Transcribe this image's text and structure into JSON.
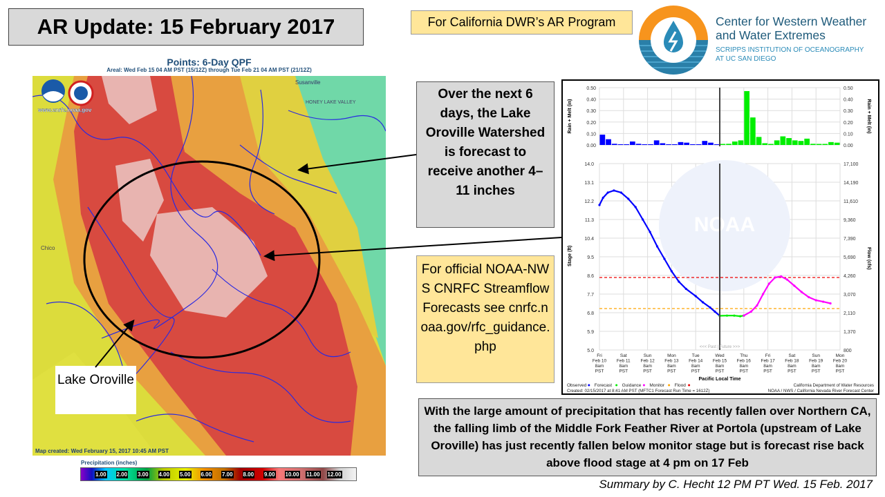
{
  "slide": {
    "title": "AR Update: 15 February 2017",
    "program_label": "For California DWR’s AR Program",
    "summary": "Summary by C. Hecht 12 PM PT Wed. 15 Feb. 2017"
  },
  "logo": {
    "line1": "Center for Western Weather",
    "line2": "and Water Extremes",
    "line3": "SCRIPPS INSTITUTION OF OCEANOGRAPHY",
    "line4": "AT UC SAN DIEGO",
    "colors": {
      "orange": "#f7941d",
      "blue": "#2a8bb8"
    }
  },
  "map": {
    "title": "Points: 6-Day QPF",
    "subtitle": "Areal: Wed Feb 15 04 AM PST (15/12Z) through Tue Feb 21 04 AM PST (21/12Z)",
    "website": "www.cnrfc.noaa.gov",
    "created": "Map created: Wed February 15, 2017 10:45 AM PST",
    "place_labels": [
      "Susanville",
      "HONEY LAKE VALLEY",
      "Chico"
    ],
    "lake_label": "Lake Oroville",
    "legend": {
      "title": "Precipitation (inches)",
      "ticks": [
        "1.00",
        "2.00",
        "3.00",
        "4.00",
        "5.00",
        "6.00",
        "7.00",
        "8.00",
        "9.00",
        "10.00",
        "11.00",
        "12.00"
      ]
    }
  },
  "callouts": {
    "watershed": "Over the next 6 days, the Lake Oroville Watershed is forecast to receive another 4–11 inches",
    "nws": "For official NOAA-NWS CNRFC Streamflow Forecasts see cnrfc.noaa.gov/rfc_guidance.php",
    "bottom": "With the large amount of precipitation that has recently fallen over Northern CA, the falling limb of the Middle Fork Feather River at Portola (upstream of Lake Oroville) has just recently fallen below monitor stage but is forecast rise back above flood stage at 4 pm on 17 Feb"
  },
  "chart_data": [
    {
      "type": "bar",
      "title": "",
      "ylabel": "Rain + Melt (in)",
      "ylim": [
        0,
        0.5
      ],
      "yticks": [
        "0.00",
        "0.10",
        "0.20",
        "0.30",
        "0.40",
        "0.50"
      ],
      "x_unit": "days since Fri Feb 10 8am PST, 6-hour bars",
      "observed": [
        0.09,
        0.05,
        0.01,
        0.005,
        0.005,
        0.03,
        0.01,
        0.005,
        0.005,
        0.04,
        0.015,
        0.005,
        0.005,
        0.025,
        0.02,
        0.005,
        0.005,
        0.035,
        0.02,
        0.0
      ],
      "forecast": [
        0.005,
        0.01,
        0.03,
        0.04,
        0.47,
        0.24,
        0.07,
        0.015,
        0.005,
        0.04,
        0.075,
        0.06,
        0.04,
        0.035,
        0.055,
        0.01,
        0.002,
        0.002,
        0.025,
        0.02
      ],
      "colors": {
        "observed": "#0000ff",
        "forecast": "#00ee00"
      }
    },
    {
      "type": "line",
      "ylabel": "Stage (ft)",
      "y2label": "Flow (cfs)",
      "xlabel": "Pacific Local Time",
      "ylim": [
        5.0,
        14.0
      ],
      "yticks": [
        "14.0",
        "13.1",
        "12.2",
        "11.3",
        "10.4",
        "9.5",
        "8.6",
        "7.7",
        "6.8",
        "5.9",
        "5.0"
      ],
      "y2ticks": [
        "17,100",
        "14,190",
        "11,610",
        "9,360",
        "7,390",
        "5,690",
        "4,260",
        "3,070",
        "2,110",
        "1,370",
        "800"
      ],
      "xticks": [
        {
          "day": "Fri",
          "date": "Feb 10",
          "time": "8am",
          "tz": "PST"
        },
        {
          "day": "Sat",
          "date": "Feb 11",
          "time": "8am",
          "tz": "PST"
        },
        {
          "day": "Sun",
          "date": "Feb 12",
          "time": "8am",
          "tz": "PST"
        },
        {
          "day": "Mon",
          "date": "Feb 13",
          "time": "8am",
          "tz": "PST"
        },
        {
          "day": "Tue",
          "date": "Feb 14",
          "time": "8am",
          "tz": "PST"
        },
        {
          "day": "Wed",
          "date": "Feb 15",
          "time": "8am",
          "tz": "PST"
        },
        {
          "day": "Thu",
          "date": "Feb 16",
          "time": "8am",
          "tz": "PST"
        },
        {
          "day": "Fri",
          "date": "Feb 17",
          "time": "8am",
          "tz": "PST"
        },
        {
          "day": "Sat",
          "date": "Feb 18",
          "time": "8am",
          "tz": "PST"
        },
        {
          "day": "Sun",
          "date": "Feb 19",
          "time": "8am",
          "tz": "PST"
        },
        {
          "day": "Mon",
          "date": "Feb 20",
          "time": "8am",
          "tz": "PST"
        }
      ],
      "now_day": 5,
      "past_future_label": "<<< Past | Future >>>",
      "series": [
        {
          "name": "Observed",
          "color": "#0000ff",
          "points": [
            [
              0,
              12.0
            ],
            [
              0.15,
              12.35
            ],
            [
              0.35,
              12.6
            ],
            [
              0.6,
              12.7
            ],
            [
              0.9,
              12.6
            ],
            [
              1.2,
              12.3
            ],
            [
              1.5,
              11.9
            ],
            [
              1.8,
              11.3
            ],
            [
              2.1,
              10.7
            ],
            [
              2.4,
              10.0
            ],
            [
              2.7,
              9.4
            ],
            [
              3.0,
              8.8
            ],
            [
              3.3,
              8.3
            ],
            [
              3.6,
              7.95
            ],
            [
              4.0,
              7.6
            ],
            [
              4.3,
              7.3
            ],
            [
              4.6,
              7.05
            ],
            [
              4.8,
              6.85
            ],
            [
              5.0,
              6.65
            ]
          ]
        },
        {
          "name": "Guidance",
          "color": "#00ee00",
          "points": [
            [
              5.0,
              6.65
            ],
            [
              5.3,
              6.66
            ],
            [
              5.6,
              6.66
            ],
            [
              5.85,
              6.63
            ],
            [
              6.0,
              6.66
            ]
          ]
        },
        {
          "name": "Monitor",
          "color": "#ff00ff",
          "points": [
            [
              6.0,
              6.66
            ],
            [
              6.3,
              6.85
            ],
            [
              6.55,
              7.15
            ],
            [
              6.8,
              7.7
            ],
            [
              7.05,
              8.2
            ],
            [
              7.3,
              8.5
            ],
            [
              7.55,
              8.55
            ],
            [
              7.8,
              8.4
            ],
            [
              8.1,
              8.1
            ],
            [
              8.4,
              7.8
            ],
            [
              8.7,
              7.55
            ],
            [
              9.0,
              7.4
            ],
            [
              9.3,
              7.33
            ],
            [
              9.6,
              7.25
            ]
          ]
        }
      ],
      "thresholds": [
        {
          "name": "Flood",
          "value": 8.5,
          "color": "#ee0000"
        },
        {
          "name": "Monitor",
          "value": 7.0,
          "color": "#ffa500"
        }
      ],
      "legend": [
        "Observed",
        "Forecast",
        "Guidance",
        "Monitor",
        "Flood"
      ],
      "legend_colors": [
        "#0000ff",
        "#00ee00",
        "#ff00ff",
        "#ffa500",
        "#ee0000"
      ],
      "footer_left": "Created: 02/15/2017 at 8:41 AM PST   (MFTC1 Forecast Run Time = 1612Z)",
      "footer_right1": "California Department of Water Resources",
      "footer_right2": "NOAA / NWS / California Nevada River Forecast Center",
      "watermark": "NOAA"
    }
  ]
}
